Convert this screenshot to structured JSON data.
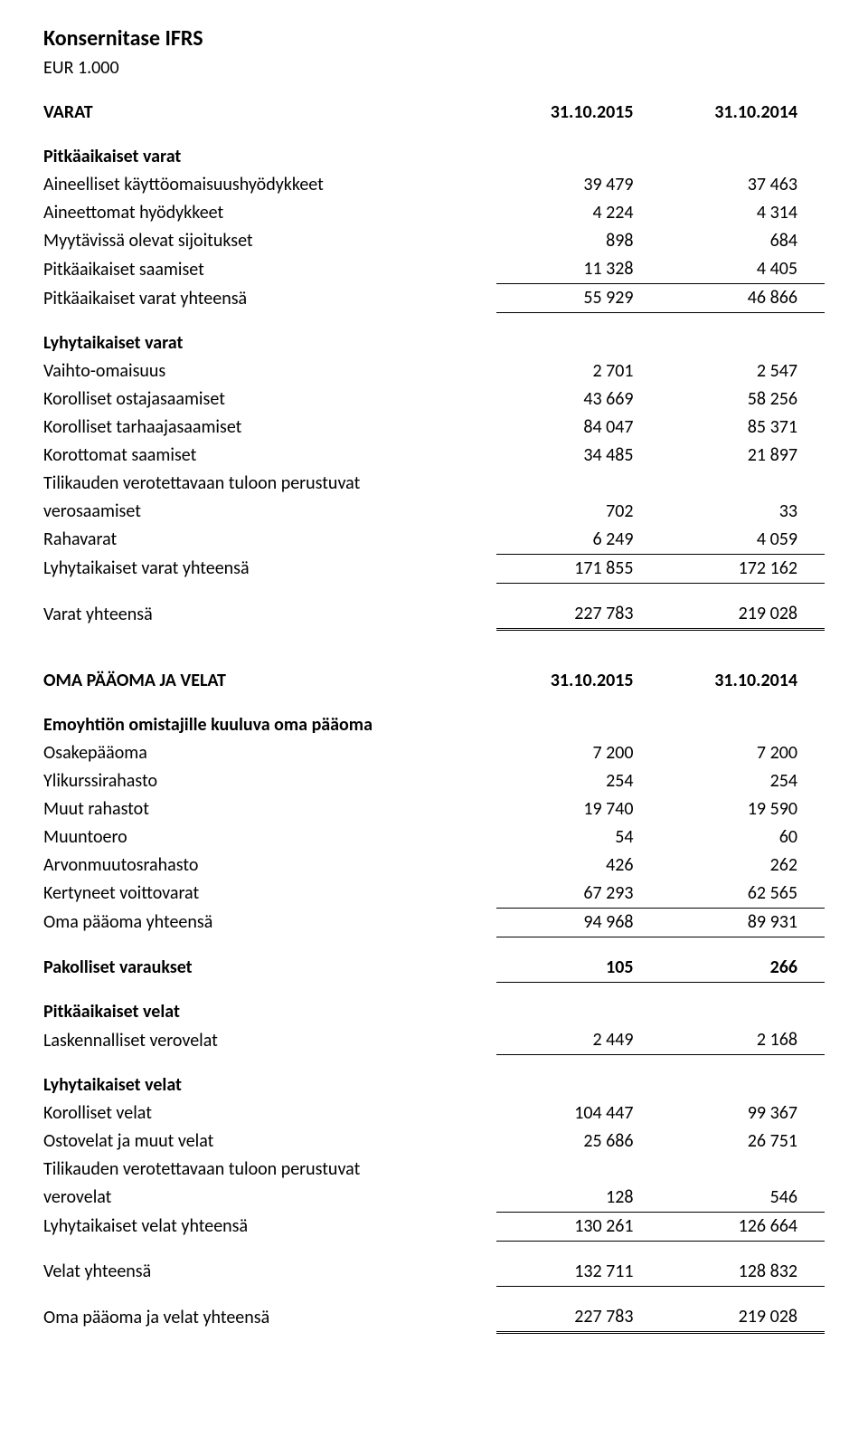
{
  "doc": {
    "title": "Konsernitase IFRS",
    "currency_unit": "EUR 1.000"
  },
  "styling": {
    "background_color": "#ffffff",
    "text_color": "#000000",
    "border_color": "#000000",
    "font_family": "Calibri",
    "title_fontsize": 24,
    "body_fontsize": 20,
    "bold_weight": 700
  },
  "varat": {
    "heading": "VARAT",
    "date1": "31.10.2015",
    "date2": "31.10.2014",
    "pitka_header": "Pitkäaikaiset varat",
    "aineelliset": {
      "label": "Aineelliset käyttöomaisuushyödykkeet",
      "v1": "39 479",
      "v2": "37 463"
    },
    "aineettomat": {
      "label": "Aineettomat hyödykkeet",
      "v1": "4 224",
      "v2": "4 314"
    },
    "myytavissa": {
      "label": "Myytävissä olevat sijoitukset",
      "v1": "898",
      "v2": "684"
    },
    "pitka_saamiset": {
      "label": "Pitkäaikaiset saamiset",
      "v1": "11 328",
      "v2": "4 405"
    },
    "pitka_yht": {
      "label": "Pitkäaikaiset varat yhteensä",
      "v1": "55 929",
      "v2": "46 866"
    },
    "lyhyt_header": "Lyhytaikaiset varat",
    "vaihto": {
      "label": "Vaihto-omaisuus",
      "v1": "2 701",
      "v2": "2 547"
    },
    "ostaja": {
      "label": "Korolliset ostajasaamiset",
      "v1": "43 669",
      "v2": "58 256"
    },
    "tarhaaja": {
      "label": "Korolliset tarhaajasaamiset",
      "v1": "84 047",
      "v2": "85 371"
    },
    "korottomat": {
      "label": "Korottomat saamiset",
      "v1": "34 485",
      "v2": "21 897"
    },
    "verosaamiset_l1": "Tilikauden verotettavaan tuloon perustuvat",
    "verosaamiset": {
      "label": "verosaamiset",
      "v1": "702",
      "v2": "33"
    },
    "rahavarat": {
      "label": "Rahavarat",
      "v1": "6 249",
      "v2": "4 059"
    },
    "lyhyt_yht": {
      "label": "Lyhytaikaiset varat yhteensä",
      "v1": "171 855",
      "v2": "172 162"
    },
    "varat_yht": {
      "label": "Varat yhteensä",
      "v1": "227 783",
      "v2": "219 028"
    }
  },
  "oma": {
    "heading": "OMA PÄÄOMA JA VELAT",
    "date1": "31.10.2015",
    "date2": "31.10.2014",
    "emo_header": "Emoyhtiön omistajille kuuluva oma pääoma",
    "osake": {
      "label": "Osakepääoma",
      "v1": "7 200",
      "v2": "7 200"
    },
    "ylikurssi": {
      "label": "Ylikurssirahasto",
      "v1": "254",
      "v2": "254"
    },
    "muut": {
      "label": "Muut rahastot",
      "v1": "19 740",
      "v2": "19 590"
    },
    "muuntoero": {
      "label": "Muuntoero",
      "v1": "54",
      "v2": "60"
    },
    "arvonmuutos": {
      "label": "Arvonmuutosrahasto",
      "v1": "426",
      "v2": "262"
    },
    "kertyneet": {
      "label": "Kertyneet voittovarat",
      "v1": "67 293",
      "v2": "62 565"
    },
    "oma_yht": {
      "label": "Oma pääoma yhteensä",
      "v1": "94 968",
      "v2": "89 931"
    },
    "pakolliset": {
      "label": "Pakolliset varaukset",
      "v1": "105",
      "v2": "266"
    },
    "pitka_velat_header": "Pitkäaikaiset velat",
    "laskennalliset": {
      "label": "Laskennalliset verovelat",
      "v1": "2 449",
      "v2": "2 168"
    },
    "lyhyt_velat_header": "Lyhytaikaiset velat",
    "korolliset_velat": {
      "label": "Korolliset velat",
      "v1": "104 447",
      "v2": "99 367"
    },
    "ostovelat": {
      "label": "Ostovelat ja muut velat",
      "v1": "25 686",
      "v2": "26 751"
    },
    "verovelat_l1": "Tilikauden verotettavaan tuloon perustuvat",
    "verovelat": {
      "label": "verovelat",
      "v1": "128",
      "v2": "546"
    },
    "lyhyt_velat_yht": {
      "label": "Lyhytaikaiset velat yhteensä",
      "v1": "130 261",
      "v2": "126 664"
    },
    "velat_yht": {
      "label": "Velat yhteensä",
      "v1": "132 711",
      "v2": "128 832"
    },
    "oma_ja_velat": {
      "label": "Oma pääoma ja velat yhteensä",
      "v1": "227 783",
      "v2": "219 028"
    }
  }
}
